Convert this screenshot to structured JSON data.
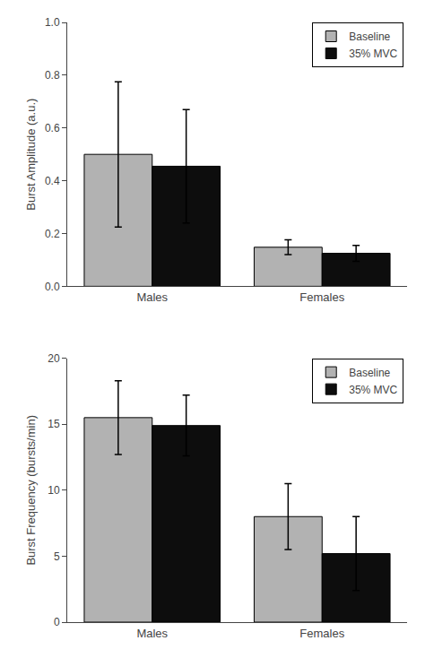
{
  "chart_data": [
    {
      "type": "bar",
      "ylabel": "Burst Amplitude (a.u.)",
      "categories": [
        "Males",
        "Females"
      ],
      "series": [
        {
          "name": "Baseline",
          "color": "#b2b2b2",
          "values": [
            0.5,
            0.148
          ],
          "errors": [
            0.275,
            0.028
          ]
        },
        {
          "name": "35% MVC",
          "color": "#0d0d0d",
          "values": [
            0.455,
            0.125
          ],
          "errors": [
            0.215,
            0.03
          ]
        }
      ],
      "ylim": [
        0,
        1.0
      ],
      "yticks": [
        {
          "value": 0.0,
          "label": "0.0"
        },
        0.2,
        0.4,
        0.6,
        0.8,
        {
          "value": 1.0,
          "label": "1.0"
        }
      ],
      "grid": false,
      "legend": "upper right"
    },
    {
      "type": "bar",
      "ylabel": "Burst Frequency (bursts/min)",
      "categories": [
        "Males",
        "Females"
      ],
      "series": [
        {
          "name": "Baseline",
          "color": "#b2b2b2",
          "values": [
            15.5,
            8.0
          ],
          "errors": [
            2.8,
            2.5
          ]
        },
        {
          "name": "35% MVC",
          "color": "#0d0d0d",
          "values": [
            14.9,
            5.2
          ],
          "errors": [
            2.3,
            2.8
          ]
        }
      ],
      "ylim": [
        0,
        20
      ],
      "yticks": [
        0,
        5,
        10,
        15,
        20
      ],
      "grid": false,
      "legend": "upper right"
    }
  ]
}
